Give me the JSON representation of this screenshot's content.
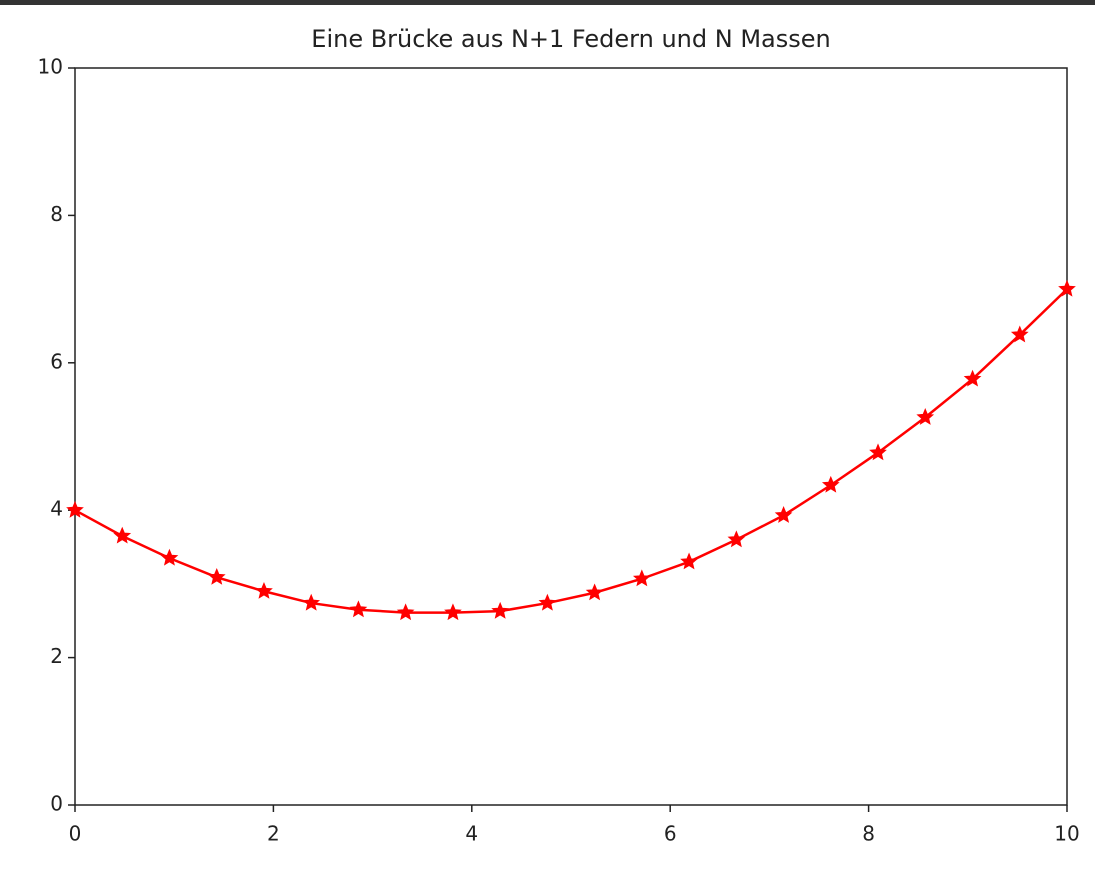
{
  "chart_data": {
    "type": "line",
    "title": "Eine Brücke aus N+1 Federn und N Massen",
    "x": [
      0,
      0.476,
      0.952,
      1.429,
      1.905,
      2.381,
      2.857,
      3.333,
      3.81,
      4.286,
      4.762,
      5.238,
      5.714,
      6.19,
      6.667,
      7.143,
      7.619,
      8.095,
      8.571,
      9.048,
      9.524,
      10
    ],
    "series": [
      {
        "color": "#ff0000",
        "marker": "star",
        "values": [
          4.0,
          3.65,
          3.35,
          3.09,
          2.9,
          2.74,
          2.65,
          2.61,
          2.61,
          2.63,
          2.74,
          2.88,
          3.07,
          3.3,
          3.6,
          3.93,
          4.34,
          4.78,
          5.26,
          5.78,
          6.38,
          7.0
        ]
      }
    ],
    "xlim": [
      0,
      10
    ],
    "ylim": [
      0,
      10
    ],
    "xticks": [
      0,
      2,
      4,
      6,
      8,
      10
    ],
    "yticks": [
      0,
      2,
      4,
      6,
      8,
      10
    ],
    "grid": false
  }
}
